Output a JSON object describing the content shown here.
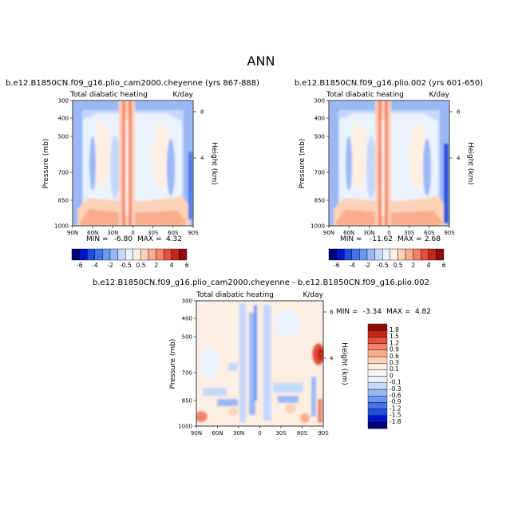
{
  "figure": {
    "title": "ANN"
  },
  "chart_data": [
    {
      "type": "heatmap",
      "title": "b.e12.B1850CN.f09_g16.plio_cam2000.cheyenne (yrs 867-888)",
      "field": "Total diabatic heating",
      "units": "K/day",
      "xlabel": "",
      "ylabel": "Pressure (mb)",
      "y2label": "Height (km)",
      "xticks": [
        "90N",
        "60N",
        "30N",
        "0",
        "30S",
        "60S",
        "90S"
      ],
      "yticks": [
        "300",
        "400",
        "500",
        "700",
        "850",
        "1000"
      ],
      "y2ticks": [
        "8",
        "4"
      ],
      "xlim": [
        90,
        -90
      ],
      "ylim": [
        1000,
        300
      ],
      "stats": {
        "min_label": "MIN =",
        "min": "-6.80",
        "max_label": "MAX =",
        "max": "4.32"
      },
      "colorbar": {
        "labels": [
          "-6",
          "-4",
          "-2",
          "-0.5",
          "0.5",
          "2",
          "4",
          "6"
        ]
      }
    },
    {
      "type": "heatmap",
      "title": "b.e12.B1850CN.f09_g16.plio.002 (yrs 601-650)",
      "field": "Total diabatic heating",
      "units": "K/day",
      "xlabel": "",
      "ylabel": "Pressure (mb)",
      "y2label": "Height (km)",
      "xticks": [
        "90N",
        "60N",
        "30N",
        "0",
        "30S",
        "60S",
        "90S"
      ],
      "yticks": [
        "300",
        "400",
        "500",
        "700",
        "850",
        "1000"
      ],
      "y2ticks": [
        "8",
        "4"
      ],
      "xlim": [
        90,
        -90
      ],
      "ylim": [
        1000,
        300
      ],
      "stats": {
        "min_label": "MIN =",
        "min": "-11.62",
        "max_label": "MAX =",
        "max": "2.68"
      },
      "colorbar": {
        "labels": [
          "-6",
          "-4",
          "-2",
          "-0.5",
          "0.5",
          "2",
          "4",
          "6"
        ]
      }
    },
    {
      "type": "heatmap",
      "title": "b.e12.B1850CN.f09_g16.plio_cam2000.cheyenne - b.e12.B1850CN.f09_g16.plio.002",
      "field": "Total diabatic heating",
      "units": "K/day",
      "xlabel": "",
      "ylabel": "Pressure (mb)",
      "y2label": "Height (km)",
      "xticks": [
        "90N",
        "60N",
        "30N",
        "0",
        "30S",
        "60S",
        "90S"
      ],
      "yticks": [
        "300",
        "400",
        "500",
        "700",
        "850",
        "1000"
      ],
      "y2ticks": [
        "8",
        "4"
      ],
      "xlim": [
        90,
        -90
      ],
      "ylim": [
        1000,
        300
      ],
      "stats": {
        "min_label": "MIN =",
        "min": "-3.34",
        "max_label": "MAX =",
        "max": "4.82"
      },
      "colorbar": {
        "labels": [
          "1.8",
          "1.5",
          "1.2",
          "0.9",
          "0.6",
          "0.3",
          "0.1",
          "0",
          "-0.1",
          "-0.3",
          "-0.6",
          "-0.9",
          "-1.2",
          "-1.5",
          "-1.8"
        ]
      }
    }
  ],
  "colors": {
    "full_scale": [
      "#00007a",
      "#0015c8",
      "#1f4de0",
      "#4472ea",
      "#6a98f2",
      "#9ab8f6",
      "#c4d8fb",
      "#eaf2fd",
      "#fdeee2",
      "#fcd2b8",
      "#f9ad8d",
      "#f4826a",
      "#e64f3e",
      "#c42819",
      "#8f0c0c"
    ],
    "diff_scale": [
      "#00007a",
      "#0015c8",
      "#1f4de0",
      "#4472ea",
      "#6a98f2",
      "#9ab8f6",
      "#c4d8fb",
      "#eaf2fd",
      "#f6f6f6",
      "#fdeee2",
      "#fcd2b8",
      "#f9ad8d",
      "#f4826a",
      "#e64f3e",
      "#c42819",
      "#8f0c0c"
    ]
  }
}
